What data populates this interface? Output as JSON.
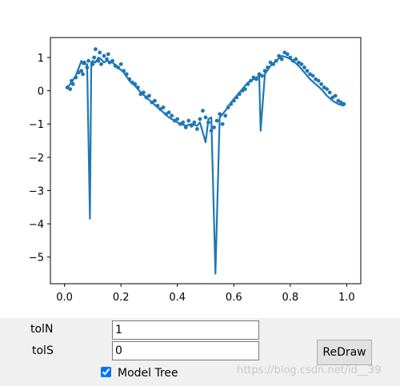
{
  "controls": {
    "toln_label": "tolN",
    "toln_value": "1",
    "tols_label": "tolS",
    "tols_value": "0",
    "redraw_label": "ReDraw",
    "model_tree_label": "Model Tree",
    "model_tree_checked": true
  },
  "watermark": "https://blog.csdn.net/id__39",
  "chart_data": {
    "type": "scatter+line",
    "title": "",
    "xlabel": "",
    "ylabel": "",
    "xlim": [
      -0.05,
      1.05
    ],
    "ylim": [
      -5.8,
      1.6
    ],
    "xticks": [
      0.0,
      0.2,
      0.4,
      0.6,
      0.8,
      1.0
    ],
    "xtick_labels": [
      "0.0",
      "0.2",
      "0.4",
      "0.6",
      "0.8",
      "1.0"
    ],
    "yticks": [
      1,
      0,
      -1,
      -2,
      -3,
      -4,
      -5
    ],
    "ytick_labels": [
      "1",
      "0",
      "−1",
      "−2",
      "−3",
      "−4",
      "−5"
    ],
    "color": "#1f77b4",
    "scatter": {
      "x": [
        0.01,
        0.02,
        0.025,
        0.03,
        0.04,
        0.05,
        0.06,
        0.065,
        0.07,
        0.08,
        0.085,
        0.1,
        0.105,
        0.11,
        0.12,
        0.125,
        0.13,
        0.14,
        0.15,
        0.155,
        0.16,
        0.17,
        0.18,
        0.19,
        0.2,
        0.21,
        0.22,
        0.23,
        0.24,
        0.25,
        0.26,
        0.27,
        0.28,
        0.29,
        0.3,
        0.31,
        0.32,
        0.33,
        0.34,
        0.35,
        0.36,
        0.37,
        0.38,
        0.39,
        0.4,
        0.41,
        0.42,
        0.43,
        0.44,
        0.45,
        0.46,
        0.47,
        0.48,
        0.49,
        0.5,
        0.51,
        0.52,
        0.53,
        0.54,
        0.55,
        0.56,
        0.57,
        0.58,
        0.59,
        0.6,
        0.61,
        0.62,
        0.63,
        0.64,
        0.65,
        0.66,
        0.67,
        0.68,
        0.69,
        0.7,
        0.71,
        0.72,
        0.73,
        0.74,
        0.75,
        0.76,
        0.77,
        0.78,
        0.79,
        0.8,
        0.81,
        0.82,
        0.83,
        0.84,
        0.85,
        0.86,
        0.87,
        0.88,
        0.89,
        0.9,
        0.91,
        0.92,
        0.93,
        0.94,
        0.95,
        0.96,
        0.97,
        0.98,
        0.99
      ],
      "y": [
        0.1,
        0.05,
        0.3,
        0.2,
        0.4,
        0.55,
        0.6,
        0.5,
        0.85,
        0.7,
        0.9,
        0.8,
        1.0,
        1.25,
        0.9,
        1.15,
        0.8,
        1.05,
        0.95,
        1.1,
        0.85,
        0.9,
        0.75,
        0.7,
        0.8,
        0.6,
        0.5,
        0.35,
        0.25,
        0.2,
        0.1,
        -0.1,
        -0.05,
        -0.2,
        -0.15,
        -0.35,
        -0.3,
        -0.45,
        -0.55,
        -0.5,
        -0.7,
        -0.65,
        -0.75,
        -0.9,
        -0.85,
        -1.0,
        -0.95,
        -1.1,
        -0.9,
        -1.05,
        -0.95,
        -1.15,
        -0.85,
        -0.6,
        -0.8,
        -0.95,
        -1.2,
        -1.1,
        -0.9,
        -0.7,
        -1.0,
        -0.75,
        -0.5,
        -0.4,
        -0.3,
        -0.2,
        -0.1,
        0.0,
        0.05,
        0.2,
        0.3,
        0.4,
        0.35,
        0.5,
        0.45,
        0.6,
        0.7,
        0.85,
        0.8,
        0.9,
        1.05,
        0.95,
        1.15,
        1.1,
        1.0,
        0.9,
        0.95,
        0.85,
        0.8,
        0.7,
        0.6,
        0.5,
        0.45,
        0.35,
        0.3,
        0.2,
        0.1,
        0.05,
        -0.05,
        -0.2,
        -0.15,
        -0.3,
        -0.35,
        -0.4
      ]
    },
    "line": {
      "x": [
        0.01,
        0.02,
        0.04,
        0.06,
        0.065,
        0.08,
        0.09,
        0.095,
        0.1,
        0.11,
        0.12,
        0.13,
        0.14,
        0.15,
        0.17,
        0.19,
        0.21,
        0.23,
        0.25,
        0.27,
        0.29,
        0.31,
        0.33,
        0.35,
        0.37,
        0.39,
        0.41,
        0.43,
        0.45,
        0.47,
        0.48,
        0.5,
        0.51,
        0.52,
        0.535,
        0.55,
        0.57,
        0.59,
        0.61,
        0.63,
        0.65,
        0.67,
        0.69,
        0.695,
        0.71,
        0.73,
        0.75,
        0.77,
        0.79,
        0.81,
        0.83,
        0.85,
        0.87,
        0.89,
        0.91,
        0.93,
        0.95,
        0.97,
        0.99
      ],
      "y": [
        0.1,
        0.2,
        0.45,
        0.9,
        0.8,
        0.8,
        -3.85,
        0.85,
        0.9,
        0.85,
        1.0,
        0.95,
        0.85,
        0.9,
        0.85,
        0.7,
        0.55,
        0.3,
        0.15,
        -0.05,
        -0.2,
        -0.35,
        -0.5,
        -0.65,
        -0.8,
        -0.9,
        -1.0,
        -1.05,
        -1.0,
        -1.05,
        -0.95,
        -1.55,
        -0.85,
        -0.8,
        -5.5,
        -0.8,
        -0.6,
        -0.35,
        -0.15,
        0.05,
        0.25,
        0.35,
        0.45,
        -1.2,
        0.5,
        0.75,
        0.9,
        1.05,
        1.0,
        0.9,
        0.75,
        0.55,
        0.35,
        0.2,
        0.05,
        -0.15,
        -0.3,
        -0.4,
        -0.45
      ]
    }
  }
}
